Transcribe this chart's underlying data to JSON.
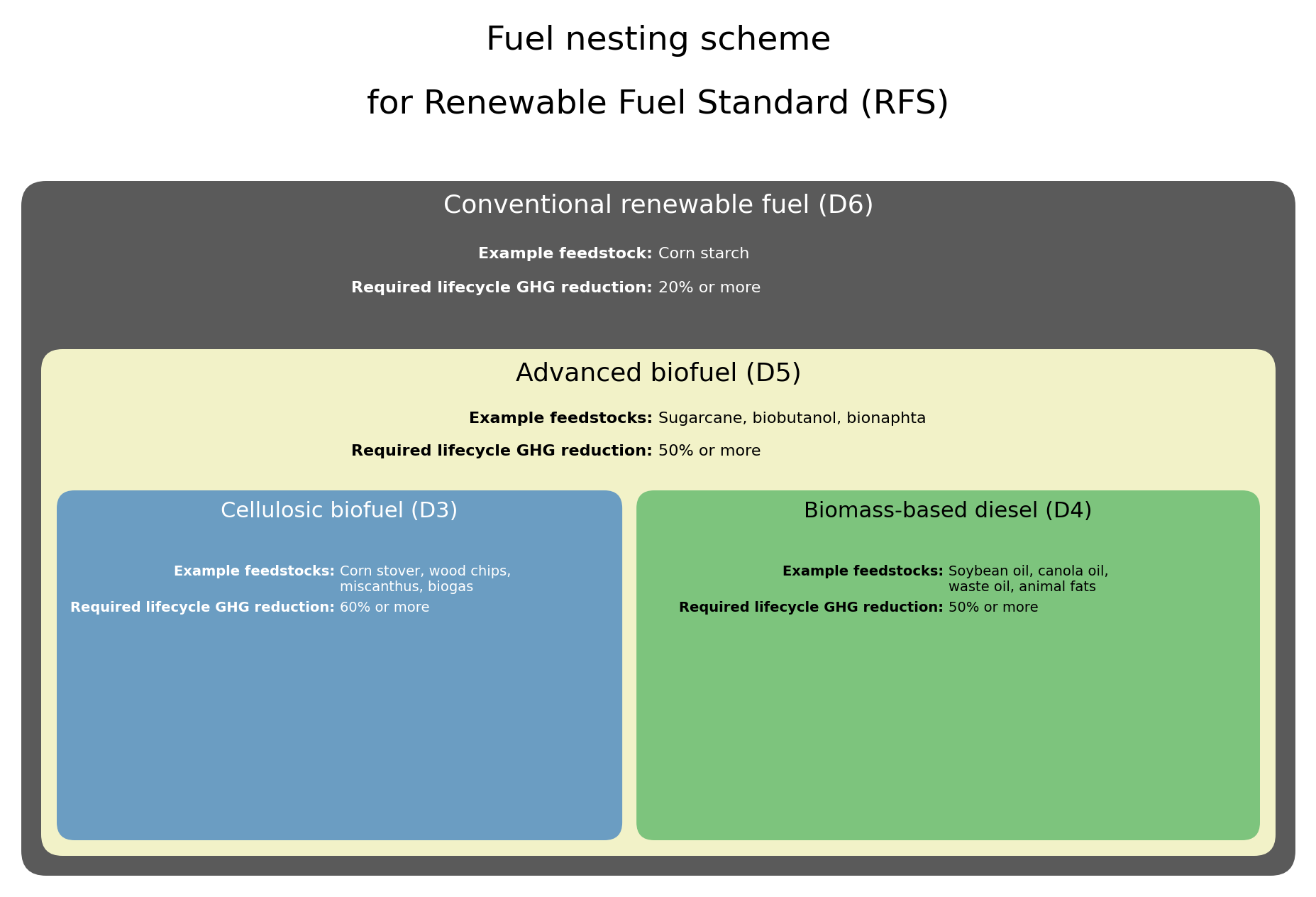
{
  "title_line1": "Fuel nesting scheme",
  "title_line2": "for Renewable Fuel Standard (RFS)",
  "title_fontsize": 34,
  "bg_color": "#ffffff",
  "d6_color": "#5a5a5a",
  "d6_title": "Conventional renewable fuel (D6)",
  "d6_title_fontsize": 26,
  "d6_feedstock_label": "Example feedstock: ",
  "d6_feedstock_value": "Corn starch",
  "d6_ghg_label": "Required lifecycle GHG reduction: ",
  "d6_ghg_value": "20% or more",
  "d6_text_color": "#ffffff",
  "d6_info_fontsize": 16,
  "d5_color": "#f2f2c8",
  "d5_title": "Advanced biofuel (D5)",
  "d5_title_fontsize": 26,
  "d5_feedstock_label": "Example feedstocks: ",
  "d5_feedstock_value": "Sugarcane, biobutanol, bionaphta",
  "d5_ghg_label": "Required lifecycle GHG reduction: ",
  "d5_ghg_value": "50% or more",
  "d5_text_color": "#000000",
  "d5_info_fontsize": 16,
  "d3_color": "#6b9dc2",
  "d3_title": "Cellulosic biofuel (D3)",
  "d3_title_fontsize": 22,
  "d3_feedstock_label": "Example feedstocks: ",
  "d3_feedstock_value": "Corn stover, wood chips,\nmiscanthus, biogas",
  "d3_ghg_label": "Required lifecycle GHG reduction: ",
  "d3_ghg_value": "60% or more",
  "d3_text_color": "#ffffff",
  "d3_info_fontsize": 14,
  "d4_color": "#7dc47d",
  "d4_title": "Biomass-based diesel (D4)",
  "d4_title_fontsize": 22,
  "d4_feedstock_label": "Example feedstocks: ",
  "d4_feedstock_value": "Soybean oil, canola oil,\nwaste oil, animal fats",
  "d4_ghg_label": "Required lifecycle GHG reduction: ",
  "d4_ghg_value": "50% or more",
  "d4_text_color": "#000000",
  "d4_info_fontsize": 14
}
